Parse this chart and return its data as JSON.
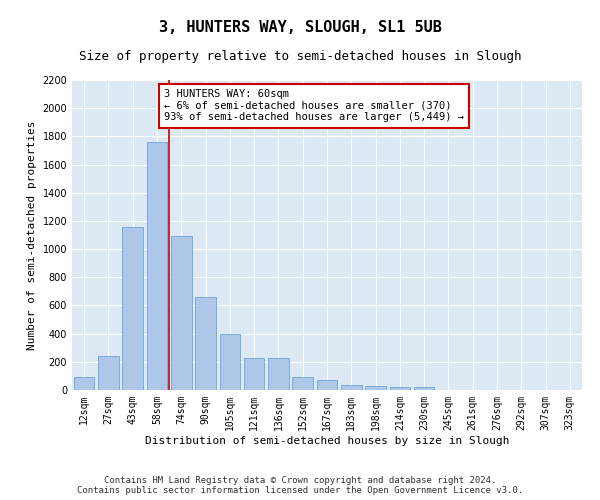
{
  "title": "3, HUNTERS WAY, SLOUGH, SL1 5UB",
  "subtitle": "Size of property relative to semi-detached houses in Slough",
  "xlabel": "Distribution of semi-detached houses by size in Slough",
  "ylabel": "Number of semi-detached properties",
  "annotation_line1": "3 HUNTERS WAY: 60sqm",
  "annotation_line2": "← 6% of semi-detached houses are smaller (370)",
  "annotation_line3": "93% of semi-detached houses are larger (5,449) →",
  "footer1": "Contains HM Land Registry data © Crown copyright and database right 2024.",
  "footer2": "Contains public sector information licensed under the Open Government Licence v3.0.",
  "property_sqm": 60,
  "categories": [
    "12sqm",
    "27sqm",
    "43sqm",
    "58sqm",
    "74sqm",
    "90sqm",
    "105sqm",
    "121sqm",
    "136sqm",
    "152sqm",
    "167sqm",
    "183sqm",
    "198sqm",
    "214sqm",
    "230sqm",
    "245sqm",
    "261sqm",
    "276sqm",
    "292sqm",
    "307sqm",
    "323sqm"
  ],
  "values": [
    90,
    240,
    1160,
    1760,
    1090,
    660,
    400,
    225,
    225,
    90,
    70,
    35,
    30,
    20,
    20,
    0,
    0,
    0,
    0,
    0,
    0
  ],
  "bar_color": "#aec6e8",
  "bar_edge_color": "#5b9bd5",
  "highlight_color": "#cc0000",
  "annotation_box_color": "#cc0000",
  "background_color": "#dce9f5",
  "ylim": [
    0,
    2200
  ],
  "yticks": [
    0,
    200,
    400,
    600,
    800,
    1000,
    1200,
    1400,
    1600,
    1800,
    2000,
    2200
  ],
  "grid_color": "#ffffff",
  "title_fontsize": 11,
  "subtitle_fontsize": 9,
  "axis_label_fontsize": 8,
  "tick_fontsize": 7,
  "annotation_fontsize": 7.5,
  "footer_fontsize": 6.5
}
